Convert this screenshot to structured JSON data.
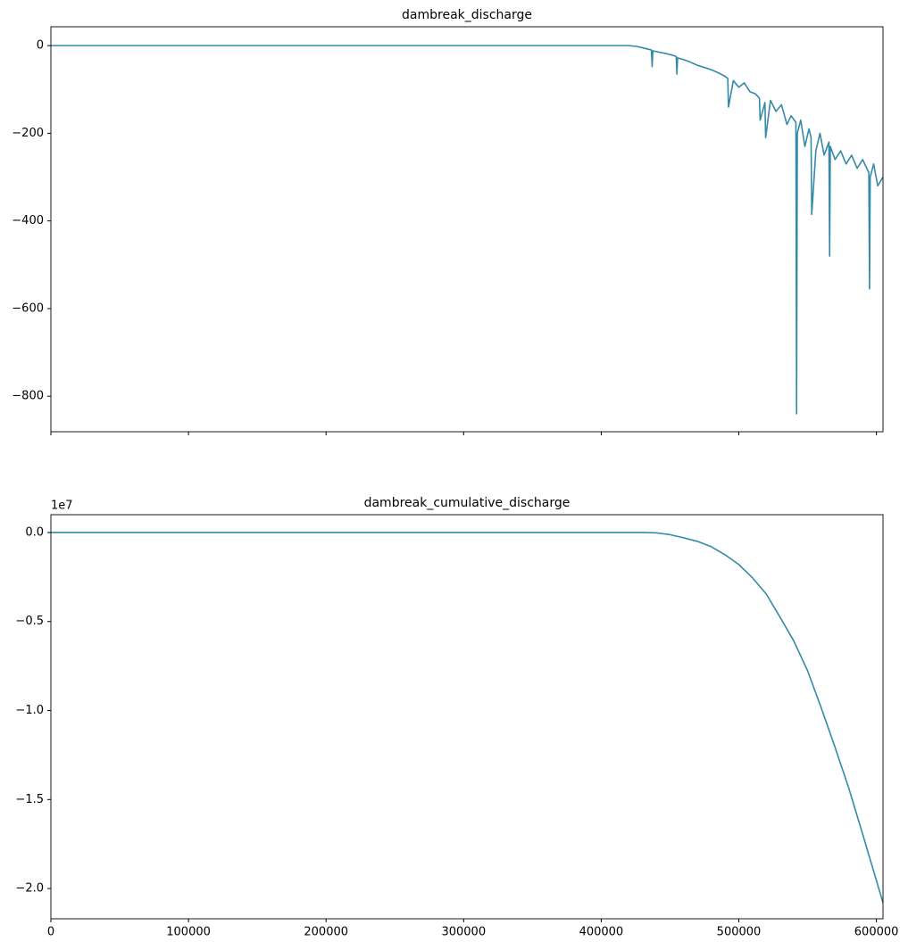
{
  "chart_data": [
    {
      "type": "line",
      "title": "dambreak_discharge",
      "x": [
        0,
        420000,
        426000,
        430000,
        434000,
        436500,
        437000,
        437500,
        442000,
        447000,
        452000,
        454500,
        455000,
        455500,
        460000,
        465000,
        470000,
        475000,
        480000,
        485000,
        490000,
        492000,
        492500,
        496000,
        500000,
        504000,
        508000,
        512000,
        515000,
        515500,
        519000,
        519500,
        523000,
        527000,
        531000,
        535000,
        538000,
        541500,
        542000,
        542500,
        545000,
        548000,
        551000,
        552500,
        553000,
        556000,
        559000,
        562000,
        565500,
        566000,
        566500,
        570000,
        574000,
        578000,
        582000,
        586000,
        590000,
        594500,
        595000,
        595500,
        598000,
        601000,
        604800
      ],
      "series": [
        {
          "name": "dambreak_discharge",
          "color": "#348aa7",
          "values": [
            0,
            0,
            -2,
            -5,
            -8,
            -10,
            -48,
            -12,
            -15,
            -18,
            -22,
            -25,
            -65,
            -28,
            -32,
            -38,
            -45,
            -50,
            -55,
            -62,
            -70,
            -75,
            -140,
            -80,
            -95,
            -85,
            -105,
            -110,
            -120,
            -170,
            -130,
            -210,
            -125,
            -150,
            -135,
            -180,
            -160,
            -175,
            -840,
            -200,
            -170,
            -230,
            -190,
            -210,
            -385,
            -240,
            -200,
            -250,
            -220,
            -480,
            -230,
            -260,
            -240,
            -270,
            -250,
            -280,
            -260,
            -290,
            -555,
            -300,
            -270,
            -320,
            -300
          ]
        }
      ],
      "xlim": [
        0,
        604800
      ],
      "xticks": [
        0,
        100000,
        200000,
        300000,
        400000,
        500000,
        600000
      ],
      "ylim": [
        -881,
        43
      ],
      "yticks": [
        {
          "value": 0,
          "label": "0"
        },
        {
          "value": -200,
          "label": "−200"
        },
        {
          "value": -400,
          "label": "−400"
        },
        {
          "value": -600,
          "label": "−600"
        },
        {
          "value": -800,
          "label": "−800"
        }
      ]
    },
    {
      "type": "line",
      "title": "dambreak_cumulative_discharge",
      "y_offset_label": "1e7",
      "x": [
        0,
        430000,
        440000,
        450000,
        460000,
        470000,
        480000,
        490000,
        500000,
        510000,
        520000,
        530000,
        540000,
        550000,
        560000,
        570000,
        580000,
        590000,
        604800
      ],
      "series": [
        {
          "name": "dambreak_cumulative_discharge",
          "color": "#348aa7",
          "values": [
            0,
            0,
            -20000,
            -120000,
            -300000,
            -500000,
            -800000,
            -1250000,
            -1800000,
            -2550000,
            -3460000,
            -4760000,
            -6100000,
            -7770000,
            -9870000,
            -12080000,
            -14380000,
            -16940000,
            -20800000
          ]
        }
      ],
      "xlim": [
        0,
        604800
      ],
      "xticks": [
        0,
        100000,
        200000,
        300000,
        400000,
        500000,
        600000
      ],
      "ylim": [
        -21700000,
        1000000
      ],
      "yticks": [
        {
          "value": 0,
          "label": "0.0"
        },
        {
          "value": -5000000,
          "label": "−0.5"
        },
        {
          "value": -10000000,
          "label": "−1.0"
        },
        {
          "value": -15000000,
          "label": "−1.5"
        },
        {
          "value": -20000000,
          "label": "−2.0"
        }
      ]
    }
  ]
}
